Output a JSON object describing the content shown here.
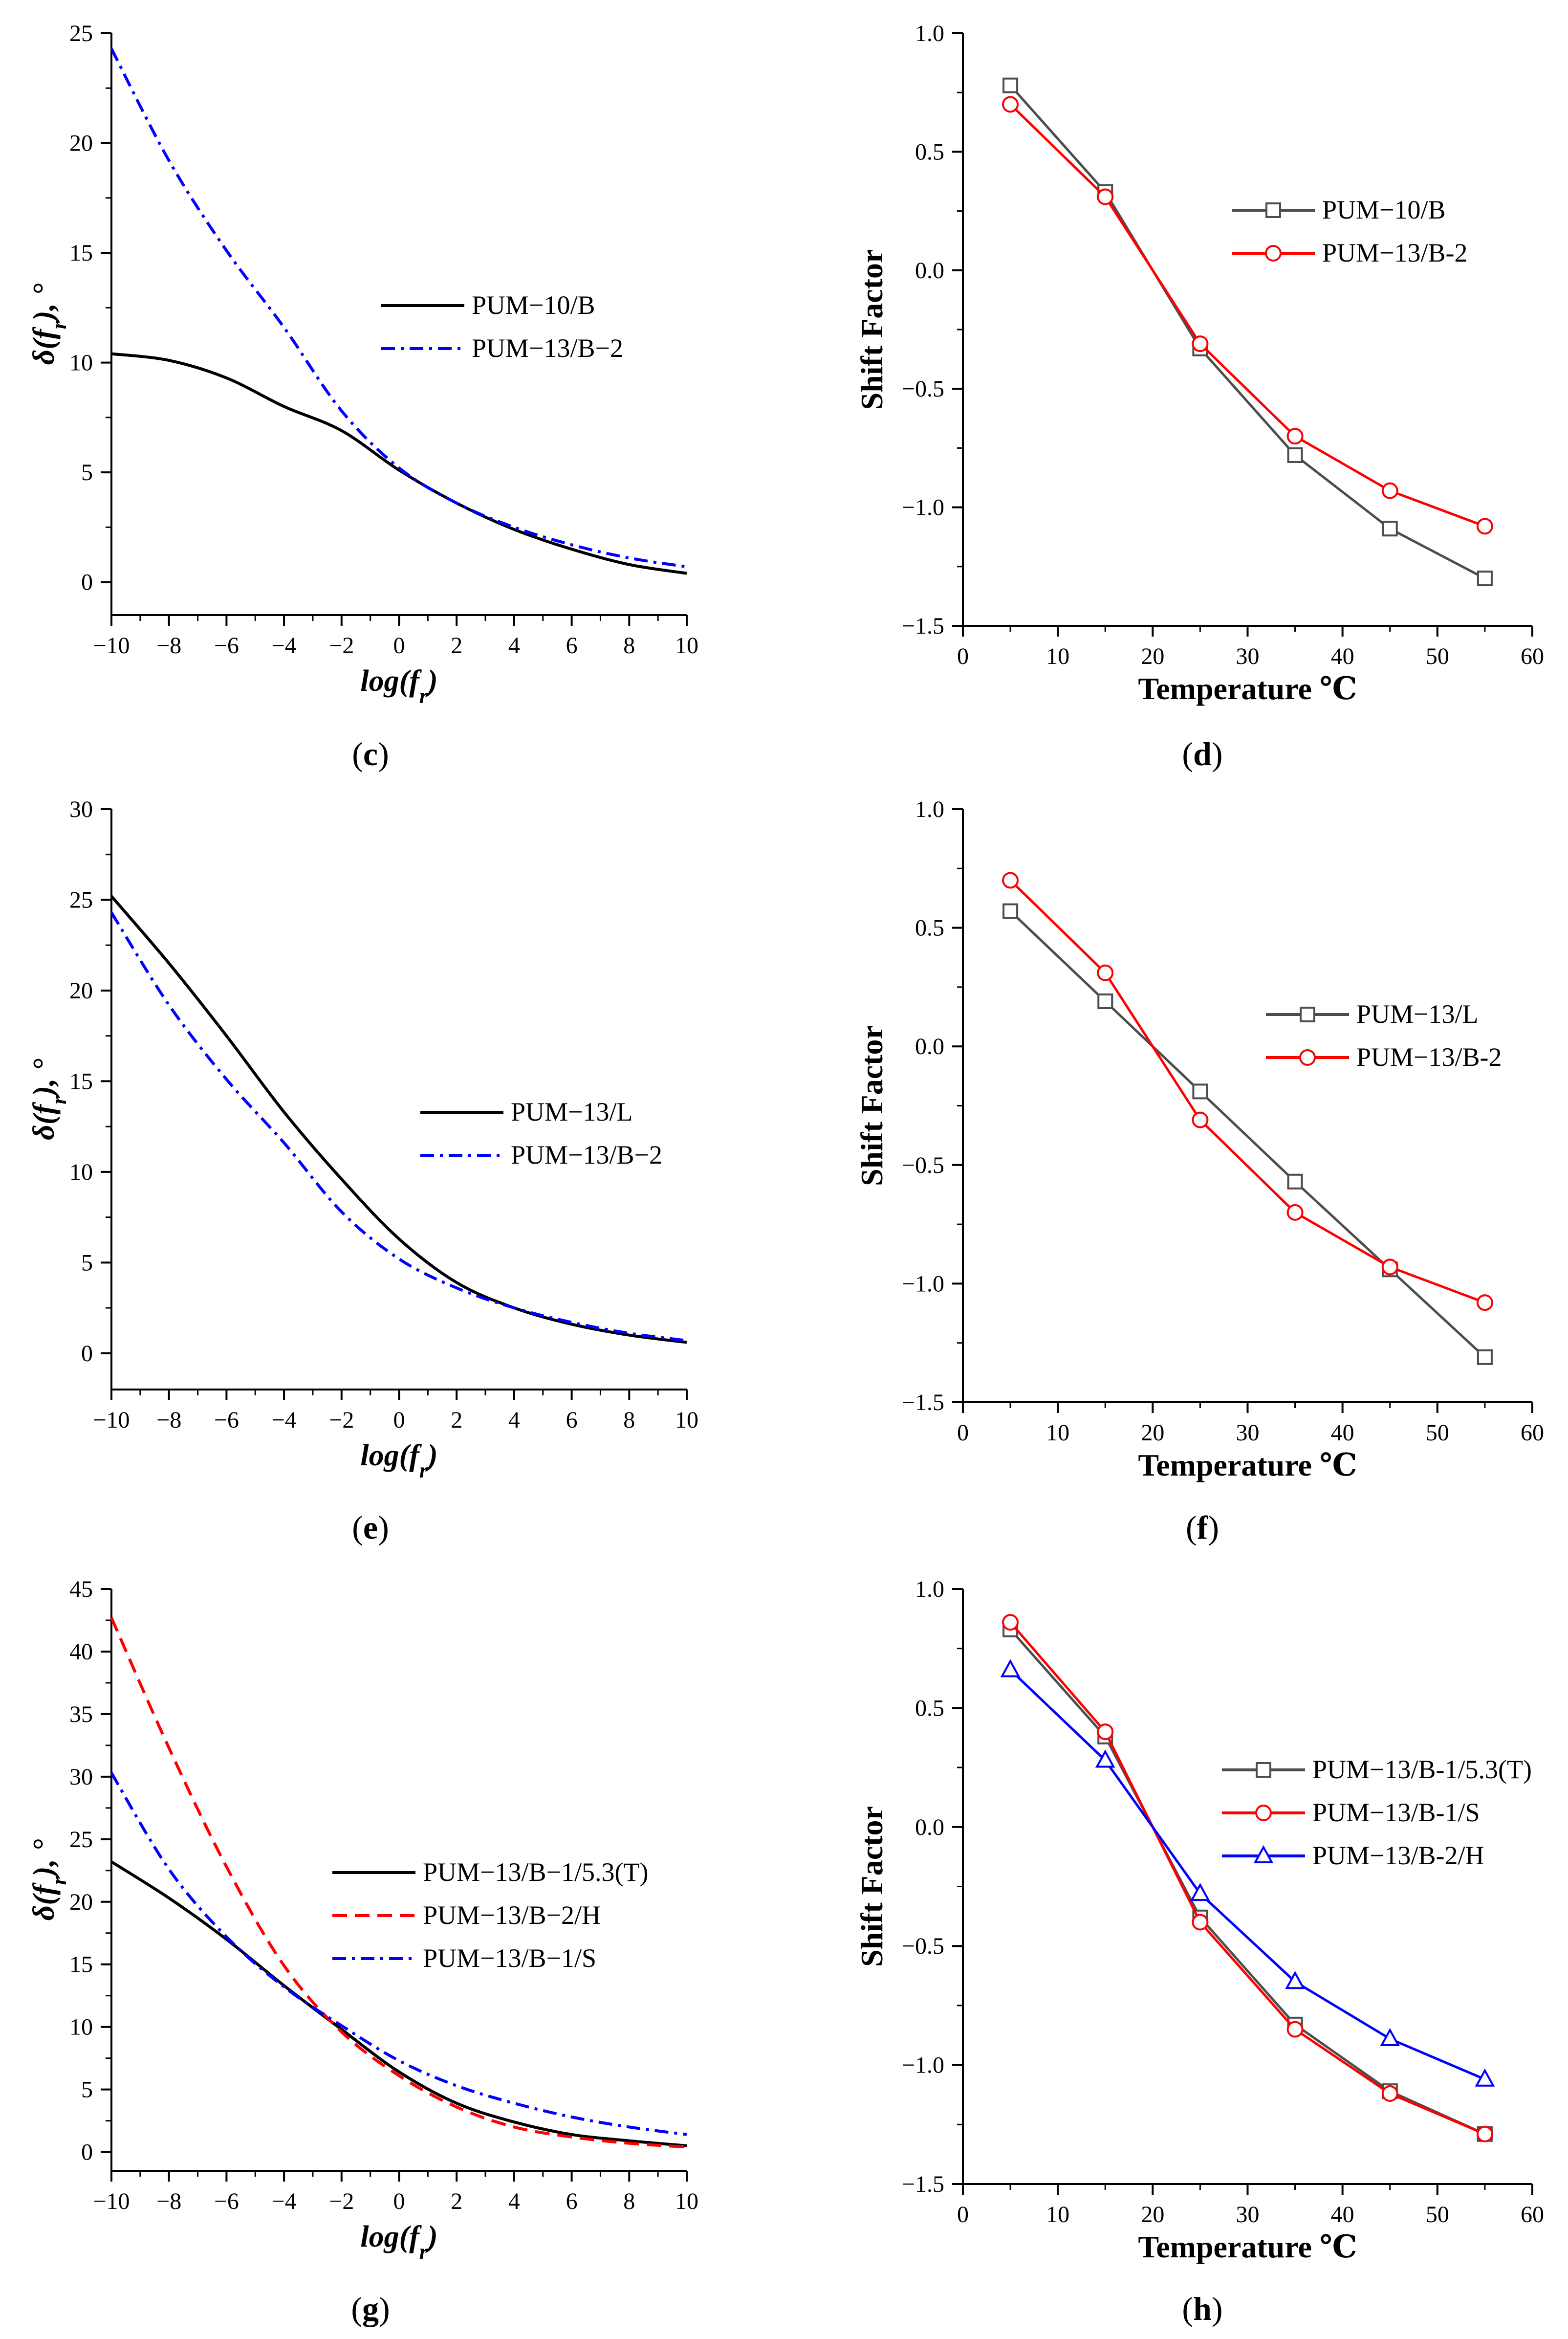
{
  "colors": {
    "black": "#000000",
    "blue": "#0000ff",
    "red": "#ff0000",
    "gray": "#4d4d4d",
    "marker_red": "#ff0000"
  },
  "chart_data": [
    {
      "id": "c",
      "type": "line",
      "panel_label": "(c)",
      "xlabel": "log(fr)",
      "ylabel": "δ(fr), °",
      "xlim": [
        -10,
        10
      ],
      "ylim": [
        -1.5,
        25
      ],
      "xticks": [
        -10,
        -8,
        -6,
        -4,
        -2,
        0,
        2,
        4,
        6,
        8,
        10
      ],
      "yticks": [
        0,
        5,
        10,
        15,
        20,
        25
      ],
      "legend_position": "center-right",
      "series": [
        {
          "name": "PUM−10/B",
          "style": "solid",
          "color": "black",
          "x": [
            -10,
            -8,
            -6,
            -4,
            -2,
            0,
            2,
            4,
            6,
            8,
            10
          ],
          "y": [
            10.4,
            10.1,
            9.3,
            8.0,
            6.9,
            5.1,
            3.6,
            2.4,
            1.5,
            0.8,
            0.4
          ]
        },
        {
          "name": "PUM−13/B−2",
          "style": "dashdot",
          "color": "blue",
          "x": [
            -10,
            -8,
            -6,
            -4,
            -2,
            0,
            2,
            4,
            6,
            8,
            10
          ],
          "y": [
            24.3,
            19.2,
            15.1,
            11.6,
            7.8,
            5.2,
            3.6,
            2.5,
            1.7,
            1.1,
            0.7
          ]
        }
      ]
    },
    {
      "id": "d",
      "type": "line",
      "panel_label": "(d)",
      "xlabel": "Temperature ℃",
      "ylabel": "Shift Factor",
      "xlim": [
        0,
        60
      ],
      "ylim": [
        -1.5,
        1.0
      ],
      "xticks": [
        0,
        10,
        20,
        30,
        40,
        50,
        60
      ],
      "yticks": [
        -1.5,
        -1.0,
        -0.5,
        0.0,
        0.5,
        1.0
      ],
      "ytick_labels": [
        "−1.5",
        "−1.0",
        "−0.5",
        "0.0",
        "0.5",
        "1.0"
      ],
      "legend_position": "upper-right",
      "series": [
        {
          "name": "PUM−10/B",
          "marker": "square",
          "color": "gray",
          "x": [
            5,
            15,
            25,
            35,
            45,
            55
          ],
          "y": [
            0.78,
            0.33,
            -0.33,
            -0.78,
            -1.09,
            -1.3
          ]
        },
        {
          "name": "PUM−13/B-2",
          "marker": "circle",
          "color": "red",
          "x": [
            5,
            15,
            25,
            35,
            45,
            55
          ],
          "y": [
            0.7,
            0.31,
            -0.31,
            -0.7,
            -0.93,
            -1.08
          ]
        }
      ]
    },
    {
      "id": "e",
      "type": "line",
      "panel_label": "(e)",
      "xlabel": "log(fr)",
      "ylabel": "δ(fr), °",
      "xlim": [
        -10,
        10
      ],
      "ylim": [
        -2,
        30
      ],
      "xticks": [
        -10,
        -8,
        -6,
        -4,
        -2,
        0,
        2,
        4,
        6,
        8,
        10
      ],
      "yticks": [
        0,
        5,
        10,
        15,
        20,
        25,
        30
      ],
      "legend_position": "center-right",
      "series": [
        {
          "name": "PUM−13/L",
          "style": "solid",
          "color": "black",
          "x": [
            -10,
            -8,
            -6,
            -4,
            -2,
            0,
            2,
            4,
            6,
            8,
            10
          ],
          "y": [
            25.2,
            21.5,
            17.5,
            13.3,
            9.6,
            6.3,
            3.9,
            2.5,
            1.6,
            1.0,
            0.6
          ]
        },
        {
          "name": "PUM−13/B−2",
          "style": "dashdot",
          "color": "blue",
          "x": [
            -10,
            -8,
            -6,
            -4,
            -2,
            0,
            2,
            4,
            6,
            8,
            10
          ],
          "y": [
            24.3,
            19.2,
            15.1,
            11.6,
            7.8,
            5.2,
            3.6,
            2.5,
            1.7,
            1.1,
            0.7
          ]
        }
      ]
    },
    {
      "id": "f",
      "type": "line",
      "panel_label": "(f)",
      "xlabel": "Temperature ℃",
      "ylabel": "Shift Factor",
      "xlim": [
        0,
        60
      ],
      "ylim": [
        -1.5,
        1.0
      ],
      "xticks": [
        0,
        10,
        20,
        30,
        40,
        50,
        60
      ],
      "yticks": [
        -1.5,
        -1.0,
        -0.5,
        0.0,
        0.5,
        1.0
      ],
      "ytick_labels": [
        "−1.5",
        "−1.0",
        "−0.5",
        "0.0",
        "0.5",
        "1.0"
      ],
      "legend_position": "center-right",
      "series": [
        {
          "name": "PUM−13/L",
          "marker": "square",
          "color": "gray",
          "x": [
            5,
            15,
            25,
            35,
            45,
            55
          ],
          "y": [
            0.57,
            0.19,
            -0.19,
            -0.57,
            -0.94,
            -1.31
          ]
        },
        {
          "name": "PUM−13/B-2",
          "marker": "circle",
          "color": "red",
          "x": [
            5,
            15,
            25,
            35,
            45,
            55
          ],
          "y": [
            0.7,
            0.31,
            -0.31,
            -0.7,
            -0.93,
            -1.08
          ]
        }
      ]
    },
    {
      "id": "g",
      "type": "line",
      "panel_label": "(g)",
      "xlabel": "log(fr)",
      "ylabel": "δ(fr), °",
      "xlim": [
        -10,
        10
      ],
      "ylim": [
        -1.5,
        45
      ],
      "xticks": [
        -10,
        -8,
        -6,
        -4,
        -2,
        0,
        2,
        4,
        6,
        8,
        10
      ],
      "yticks": [
        0,
        5,
        10,
        15,
        20,
        25,
        30,
        35,
        40,
        45
      ],
      "legend_position": "center-right",
      "series": [
        {
          "name": "PUM−13/B−1/5.3(T)",
          "style": "solid",
          "color": "black",
          "x": [
            -10,
            -8,
            -6,
            -4,
            -2,
            0,
            2,
            4,
            6,
            8,
            10
          ],
          "y": [
            23.2,
            20.3,
            17.0,
            13.3,
            9.8,
            6.4,
            3.9,
            2.4,
            1.4,
            0.9,
            0.5
          ]
        },
        {
          "name": "PUM−13/B−2/H",
          "style": "dashed",
          "color": "red",
          "x": [
            -10,
            -8,
            -6,
            -4,
            -2,
            0,
            2,
            4,
            6,
            8,
            10
          ],
          "y": [
            42.7,
            32.3,
            22.8,
            14.9,
            9.6,
            6.1,
            3.6,
            2.0,
            1.2,
            0.7,
            0.4
          ]
        },
        {
          "name": "PUM−13/B−1/S",
          "style": "dashdot",
          "color": "blue",
          "x": [
            -10,
            -8,
            -6,
            -4,
            -2,
            0,
            2,
            4,
            6,
            8,
            10
          ],
          "y": [
            30.3,
            22.6,
            17.2,
            13.2,
            10.1,
            7.3,
            5.3,
            3.9,
            2.8,
            2.0,
            1.4
          ]
        }
      ]
    },
    {
      "id": "h",
      "type": "line",
      "panel_label": "(h)",
      "xlabel": "Temperature ℃",
      "ylabel": "Shift Factor",
      "xlim": [
        0,
        60
      ],
      "ylim": [
        -1.5,
        1.0
      ],
      "xticks": [
        0,
        10,
        20,
        30,
        40,
        50,
        60
      ],
      "yticks": [
        -1.5,
        -1.0,
        -0.5,
        0.0,
        0.5,
        1.0
      ],
      "ytick_labels": [
        "−1.5",
        "−1.0",
        "−0.5",
        "0.0",
        "0.5",
        "1.0"
      ],
      "legend_position": "center-right",
      "series": [
        {
          "name": "PUM−13/B-1/5.3(T)",
          "marker": "square",
          "color": "gray",
          "x": [
            5,
            15,
            25,
            35,
            45,
            55
          ],
          "y": [
            0.83,
            0.38,
            -0.38,
            -0.83,
            -1.11,
            -1.29
          ]
        },
        {
          "name": "PUM−13/B-1/S",
          "marker": "circle",
          "color": "red",
          "x": [
            5,
            15,
            25,
            35,
            45,
            55
          ],
          "y": [
            0.86,
            0.4,
            -0.4,
            -0.85,
            -1.12,
            -1.29
          ]
        },
        {
          "name": "PUM−13/B-2/H",
          "marker": "triangle",
          "color": "blue",
          "x": [
            5,
            15,
            25,
            35,
            45,
            55
          ],
          "y": [
            0.66,
            0.28,
            -0.28,
            -0.65,
            -0.89,
            -1.06
          ]
        }
      ]
    }
  ]
}
